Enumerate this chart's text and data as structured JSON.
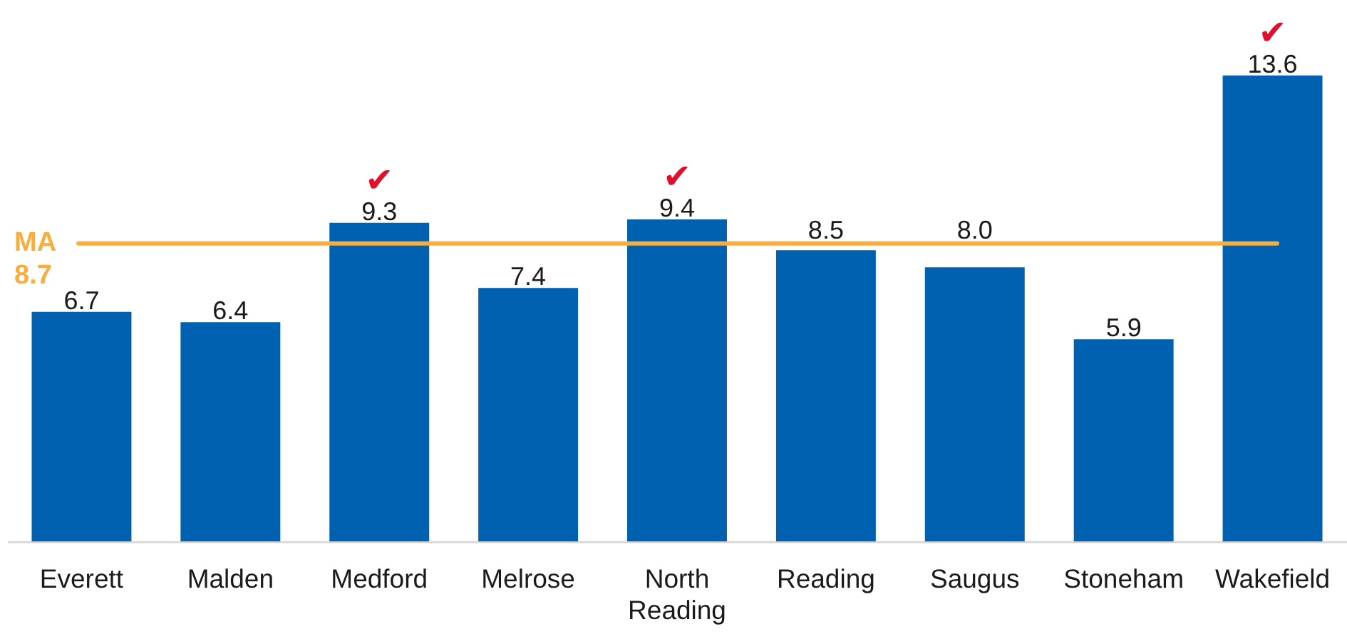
{
  "chart_data": {
    "type": "bar",
    "categories": [
      "Everett",
      "Malden",
      "Medford",
      "Melrose",
      "North Reading",
      "Reading",
      "Saugus",
      "Stoneham",
      "Wakefield"
    ],
    "values": [
      6.7,
      6.4,
      9.3,
      7.4,
      9.4,
      8.5,
      8.0,
      5.9,
      13.6
    ],
    "value_labels": [
      "6.7",
      "6.4",
      "9.3",
      "7.4",
      "9.4",
      "8.5",
      "8.0",
      "5.9",
      "13.6"
    ],
    "color": "#0061b0",
    "ref_lines": [
      {
        "axis": "y",
        "value": 8.7,
        "label": "MA\n8.7",
        "color": "#f8ae3c"
      }
    ],
    "annotations": [
      {
        "text": "✔",
        "x": "Medford",
        "y": 9.3
      },
      {
        "text": "✔",
        "x": "North Reading",
        "y": 9.4
      },
      {
        "text": "✔",
        "x": "Wakefield",
        "y": 13.6
      }
    ],
    "grid": false
  }
}
